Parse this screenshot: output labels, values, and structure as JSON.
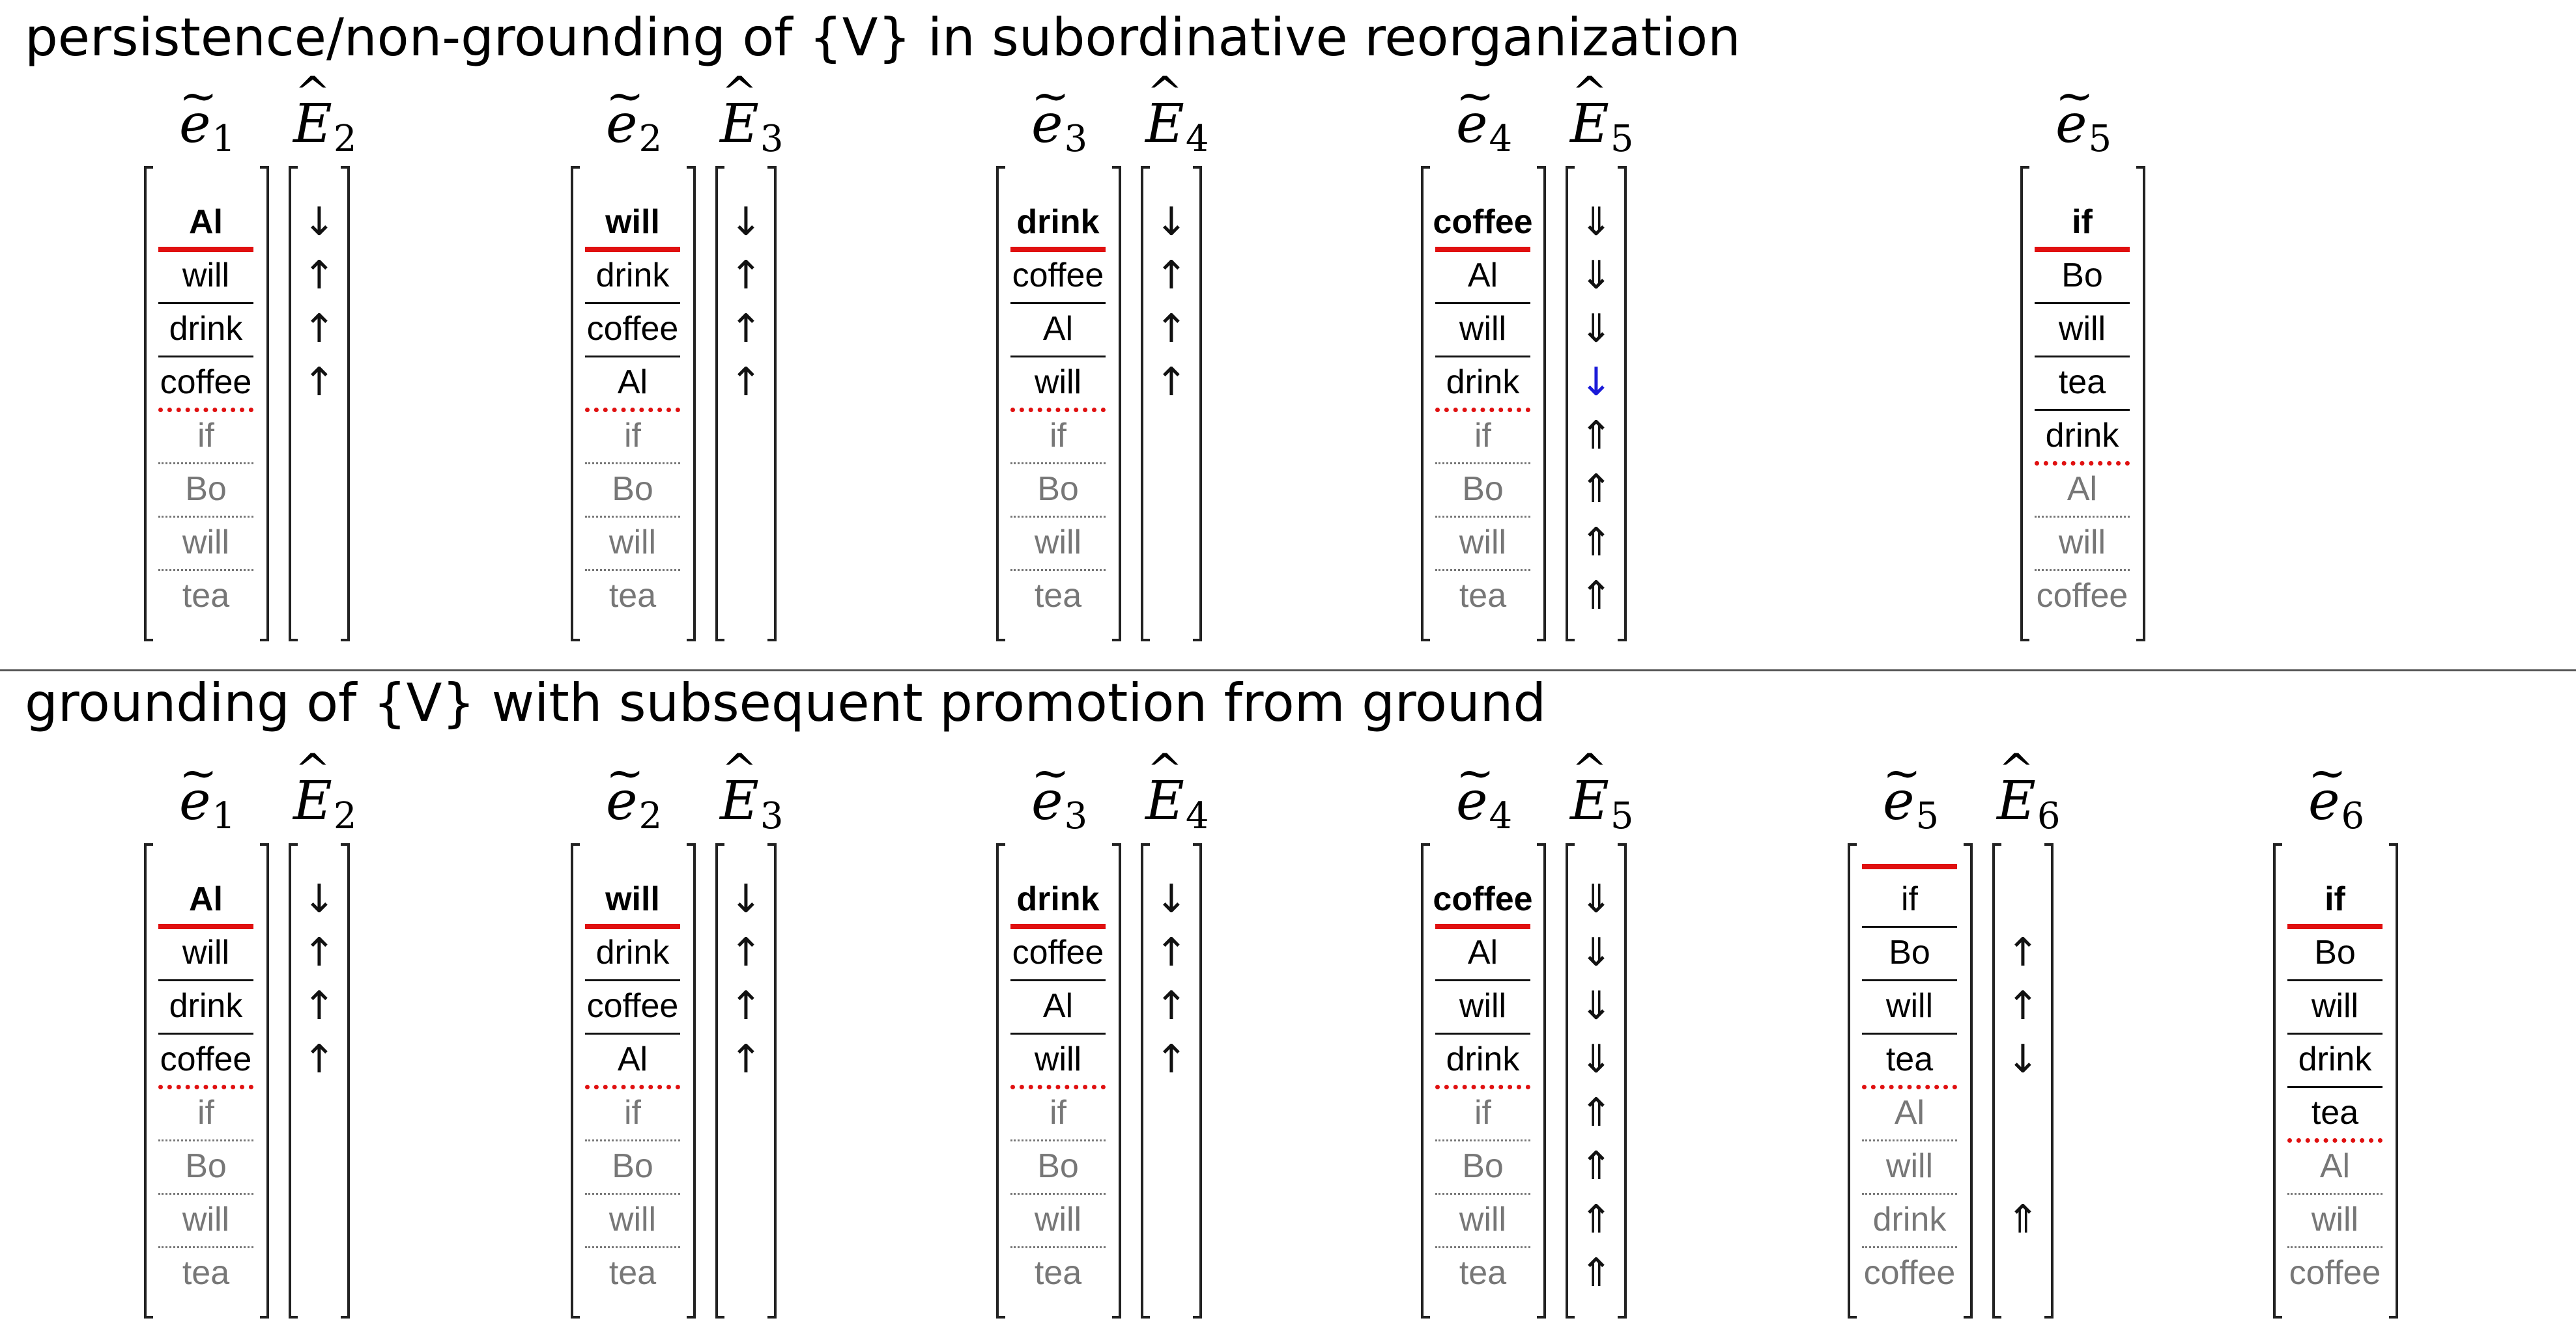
{
  "sections": [
    {
      "title": "persistence/non-grounding of {V} in subordinative reorganization",
      "columns": [
        {
          "e_sub": "1",
          "E_sub": "2",
          "cells": [
            {
              "t": "Al",
              "s": "b"
            },
            {
              "t": "will"
            },
            {
              "t": "drink"
            },
            {
              "t": "coffee"
            },
            {
              "t": "if",
              "s": "d"
            },
            {
              "t": "Bo",
              "s": "d"
            },
            {
              "t": "will",
              "s": "d"
            },
            {
              "t": "tea",
              "s": "d"
            }
          ],
          "red_top": 1,
          "red_dotted": 4,
          "arrows": [
            "↓",
            "↑",
            "↑",
            "↑",
            "",
            "",
            "",
            ""
          ]
        },
        {
          "e_sub": "2",
          "E_sub": "3",
          "cells": [
            {
              "t": "will",
              "s": "b"
            },
            {
              "t": "drink"
            },
            {
              "t": "coffee"
            },
            {
              "t": "Al"
            },
            {
              "t": "if",
              "s": "d"
            },
            {
              "t": "Bo",
              "s": "d"
            },
            {
              "t": "will",
              "s": "d"
            },
            {
              "t": "tea",
              "s": "d"
            }
          ],
          "red_top": 1,
          "red_dotted": 4,
          "arrows": [
            "↓",
            "↑",
            "↑",
            "↑",
            "",
            "",
            "",
            ""
          ]
        },
        {
          "e_sub": "3",
          "E_sub": "4",
          "cells": [
            {
              "t": "drink",
              "s": "b"
            },
            {
              "t": "coffee"
            },
            {
              "t": "Al"
            },
            {
              "t": "will"
            },
            {
              "t": "if",
              "s": "d"
            },
            {
              "t": "Bo",
              "s": "d"
            },
            {
              "t": "will",
              "s": "d"
            },
            {
              "t": "tea",
              "s": "d"
            }
          ],
          "red_top": 1,
          "red_dotted": 4,
          "arrows": [
            "↓",
            "↑",
            "↑",
            "↑",
            "",
            "",
            "",
            ""
          ]
        },
        {
          "e_sub": "4",
          "E_sub": "5",
          "cells": [
            {
              "t": "coffee",
              "s": "b"
            },
            {
              "t": "Al"
            },
            {
              "t": "will"
            },
            {
              "t": "drink"
            },
            {
              "t": "if",
              "s": "d"
            },
            {
              "t": "Bo",
              "s": "d"
            },
            {
              "t": "will",
              "s": "d"
            },
            {
              "t": "tea",
              "s": "d"
            }
          ],
          "red_top": 1,
          "red_dotted": 4,
          "arrows": [
            "⇓",
            "⇓",
            "⇓",
            "↓",
            "⇑",
            "⇑",
            "⇑",
            "⇑"
          ],
          "blue_arrow": 3
        },
        {
          "e_sub": "5",
          "E_sub": "",
          "cells": [
            {
              "t": "if",
              "s": "b"
            },
            {
              "t": "Bo"
            },
            {
              "t": "will"
            },
            {
              "t": "tea"
            },
            {
              "t": "drink"
            },
            {
              "t": "Al",
              "s": "d"
            },
            {
              "t": "will",
              "s": "d"
            },
            {
              "t": "coffee",
              "s": "d"
            }
          ],
          "red_top": 1,
          "red_dotted": 5,
          "arrows": []
        }
      ]
    },
    {
      "title": "grounding of {V} with subsequent promotion from ground",
      "columns": [
        {
          "e_sub": "1",
          "E_sub": "2",
          "cells": [
            {
              "t": "Al",
              "s": "b"
            },
            {
              "t": "will"
            },
            {
              "t": "drink"
            },
            {
              "t": "coffee"
            },
            {
              "t": "if",
              "s": "d"
            },
            {
              "t": "Bo",
              "s": "d"
            },
            {
              "t": "will",
              "s": "d"
            },
            {
              "t": "tea",
              "s": "d"
            }
          ],
          "red_top": 1,
          "red_dotted": 4,
          "arrows": [
            "↓",
            "↑",
            "↑",
            "↑",
            "",
            "",
            "",
            ""
          ]
        },
        {
          "e_sub": "2",
          "E_sub": "3",
          "cells": [
            {
              "t": "will",
              "s": "b"
            },
            {
              "t": "drink"
            },
            {
              "t": "coffee"
            },
            {
              "t": "Al"
            },
            {
              "t": "if",
              "s": "d"
            },
            {
              "t": "Bo",
              "s": "d"
            },
            {
              "t": "will",
              "s": "d"
            },
            {
              "t": "tea",
              "s": "d"
            }
          ],
          "red_top": 1,
          "red_dotted": 4,
          "arrows": [
            "↓",
            "↑",
            "↑",
            "↑",
            "",
            "",
            "",
            ""
          ]
        },
        {
          "e_sub": "3",
          "E_sub": "4",
          "cells": [
            {
              "t": "drink",
              "s": "b"
            },
            {
              "t": "coffee"
            },
            {
              "t": "Al"
            },
            {
              "t": "will"
            },
            {
              "t": "if",
              "s": "d"
            },
            {
              "t": "Bo",
              "s": "d"
            },
            {
              "t": "will",
              "s": "d"
            },
            {
              "t": "tea",
              "s": "d"
            }
          ],
          "red_top": 1,
          "red_dotted": 4,
          "arrows": [
            "↓",
            "↑",
            "↑",
            "↑",
            "",
            "",
            "",
            ""
          ]
        },
        {
          "e_sub": "4",
          "E_sub": "5",
          "cells": [
            {
              "t": "coffee",
              "s": "b"
            },
            {
              "t": "Al"
            },
            {
              "t": "will"
            },
            {
              "t": "drink"
            },
            {
              "t": "if",
              "s": "d"
            },
            {
              "t": "Bo",
              "s": "d"
            },
            {
              "t": "will",
              "s": "d"
            },
            {
              "t": "tea",
              "s": "d"
            }
          ],
          "red_top": 1,
          "red_dotted": 4,
          "arrows": [
            "⇓",
            "⇓",
            "⇓",
            "⇓",
            "⇑",
            "⇑",
            "⇑",
            "⇑"
          ]
        },
        {
          "e_sub": "5",
          "E_sub": "6",
          "cells": [
            {
              "t": "if"
            },
            {
              "t": "Bo"
            },
            {
              "t": "will"
            },
            {
              "t": "tea"
            },
            {
              "t": "Al",
              "s": "d"
            },
            {
              "t": "will",
              "s": "d"
            },
            {
              "t": "drink",
              "s": "d"
            },
            {
              "t": "coffee",
              "s": "d"
            }
          ],
          "red_top": 0,
          "red_dotted": 4,
          "arrows": [
            "",
            "↑",
            "↑",
            "↓",
            "",
            "",
            "⇑",
            ""
          ]
        },
        {
          "e_sub": "6",
          "E_sub": "",
          "cells": [
            {
              "t": "if",
              "s": "b"
            },
            {
              "t": "Bo"
            },
            {
              "t": "will"
            },
            {
              "t": "drink"
            },
            {
              "t": "tea"
            },
            {
              "t": "Al",
              "s": "d"
            },
            {
              "t": "will",
              "s": "d"
            },
            {
              "t": "coffee",
              "s": "d"
            }
          ],
          "red_top": 1,
          "red_dotted": 5,
          "arrows": []
        }
      ]
    }
  ]
}
